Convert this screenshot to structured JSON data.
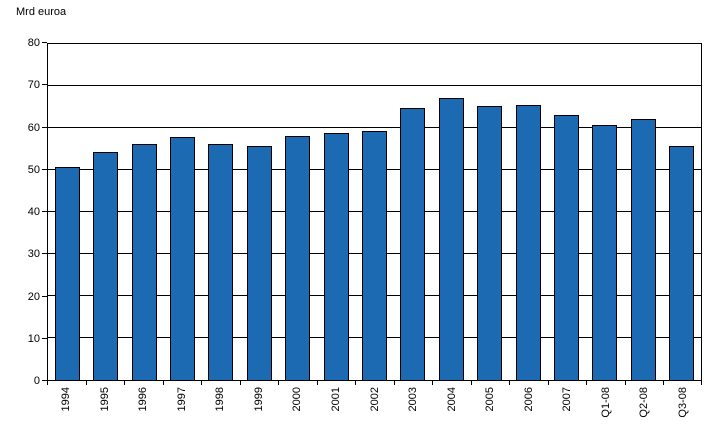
{
  "chart_data": {
    "type": "bar",
    "title": "Mrd euroa",
    "categories": [
      "1994",
      "1995",
      "1996",
      "1997",
      "1998",
      "1999",
      "2000",
      "2001",
      "2002",
      "2003",
      "2004",
      "2005",
      "2006",
      "2007",
      "Q1-08",
      "Q2-08",
      "Q3-08"
    ],
    "values": [
      50.7,
      54.2,
      56.2,
      57.8,
      56.1,
      55.7,
      58.0,
      58.8,
      59.3,
      64.7,
      67.2,
      65.2,
      65.5,
      63.1,
      60.8,
      62.1,
      55.7
    ],
    "xlabel": "",
    "ylabel": "Mrd euroa",
    "ylim": [
      0,
      80
    ],
    "yticks": [
      0,
      10,
      20,
      30,
      40,
      50,
      60,
      70,
      80
    ],
    "grid": true,
    "legend_position": "none",
    "bar_color": "#1C6BB2",
    "bar_border_color": "#000000",
    "axis_color": "#000000",
    "background_color": "#FFFFFF"
  }
}
